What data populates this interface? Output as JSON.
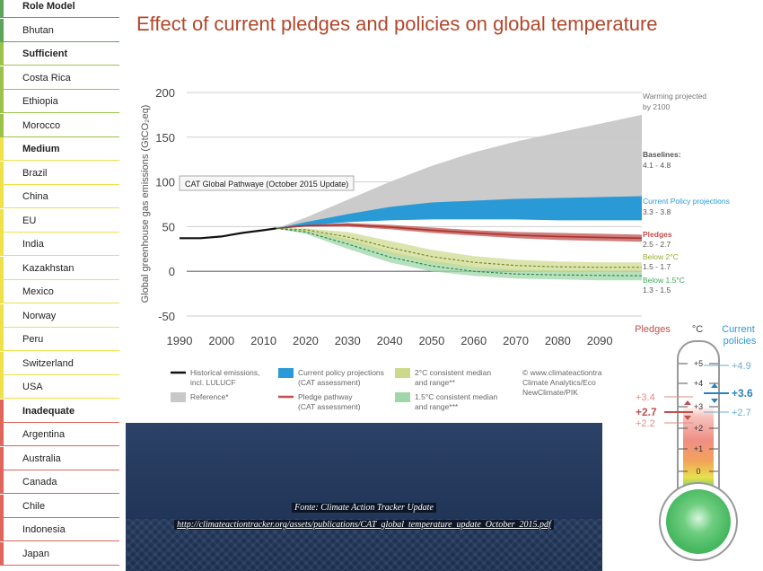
{
  "sidebar": {
    "items": [
      {
        "label": "Role Model",
        "category": true,
        "color": "#5aa55a"
      },
      {
        "label": "Bhutan",
        "category": false,
        "color": "#5aa55a"
      },
      {
        "label": "Sufficient",
        "category": true,
        "color": "#9bc34a"
      },
      {
        "label": "Costa Rica",
        "category": false,
        "color": "#9bc34a"
      },
      {
        "label": "Ethiopia",
        "category": false,
        "color": "#9bc34a"
      },
      {
        "label": "Morocco",
        "category": false,
        "color": "#9bc34a"
      },
      {
        "label": "Medium",
        "category": true,
        "color": "#f0e04a"
      },
      {
        "label": "Brazil",
        "category": false,
        "color": "#f0e04a"
      },
      {
        "label": "China",
        "category": false,
        "color": "#f0e04a"
      },
      {
        "label": "EU",
        "category": false,
        "color": "#f0e04a"
      },
      {
        "label": "India",
        "category": false,
        "color": "#f0e04a"
      },
      {
        "label": "Kazakhstan",
        "category": false,
        "color": "#f0e04a"
      },
      {
        "label": "Mexico",
        "category": false,
        "color": "#f0e04a"
      },
      {
        "label": "Norway",
        "category": false,
        "color": "#f0e04a"
      },
      {
        "label": "Peru",
        "category": false,
        "color": "#f0e04a"
      },
      {
        "label": "Switzerland",
        "category": false,
        "color": "#f0e04a"
      },
      {
        "label": "USA",
        "category": false,
        "color": "#f0e04a"
      },
      {
        "label": "Inadequate",
        "category": true,
        "color": "#e0655a"
      },
      {
        "label": "Argentina",
        "category": false,
        "color": "#e0655a"
      },
      {
        "label": "Australia",
        "category": false,
        "color": "#e0655a"
      },
      {
        "label": "Canada",
        "category": false,
        "color": "#e0655a"
      },
      {
        "label": "Chile",
        "category": false,
        "color": "#e0655a"
      },
      {
        "label": "Indonesia",
        "category": false,
        "color": "#e0655a"
      },
      {
        "label": "Japan",
        "category": false,
        "color": "#e0655a"
      }
    ]
  },
  "title": "Effect of current pledges and policies on global temperature",
  "chart_data": {
    "type": "area",
    "ylabel": "Global greenhouse gas emissions (GtCO₂eq)",
    "xlabel": "",
    "xlim": [
      1990,
      2100
    ],
    "ylim": [
      -50,
      200
    ],
    "x_ticks": [
      1990,
      2000,
      2010,
      2020,
      2030,
      2040,
      2050,
      2060,
      2070,
      2080,
      2090
    ],
    "y_ticks": [
      -50,
      0,
      50,
      100,
      150,
      200
    ],
    "grid": "horizontal",
    "annotation": "CAT Global Pathwaye (October 2015 Update)",
    "colors": {
      "historical": "#111111",
      "reference": "#c8c8c8",
      "current_policy": "#2a9ad6",
      "pledge": "#c0504d",
      "two_degree": "#cdd98a",
      "one_five_degree": "#9fd7a8"
    },
    "series": {
      "historical": {
        "x": [
          1990,
          1995,
          2000,
          2005,
          2010,
          2013
        ],
        "y": [
          37,
          37,
          39,
          43,
          46,
          48
        ]
      },
      "reference": {
        "x": [
          2013,
          2020,
          2030,
          2040,
          2050,
          2060,
          2070,
          2080,
          2090,
          2100
        ],
        "upper": [
          48,
          60,
          80,
          100,
          118,
          133,
          145,
          155,
          165,
          175
        ],
        "lower": [
          48,
          53,
          59,
          64,
          68,
          71,
          72,
          73,
          74,
          75
        ]
      },
      "current_policy": {
        "x": [
          2013,
          2020,
          2030,
          2040,
          2050,
          2060,
          2070,
          2080,
          2090,
          2100
        ],
        "upper": [
          48,
          55,
          64,
          72,
          77,
          79,
          81,
          82,
          83,
          84
        ],
        "lower": [
          48,
          51,
          55,
          57,
          58,
          58,
          58,
          57,
          57,
          57
        ]
      },
      "pledge": {
        "x": [
          2013,
          2020,
          2030,
          2040,
          2050,
          2060,
          2070,
          2080,
          2090,
          2100
        ],
        "upper": [
          48,
          52,
          54,
          52,
          49,
          46,
          44,
          43,
          42,
          41
        ],
        "lower": [
          48,
          50,
          50,
          47,
          43,
          40,
          37,
          35,
          34,
          33
        ]
      },
      "two_degree": {
        "x": [
          2013,
          2020,
          2030,
          2040,
          2050,
          2060,
          2070,
          2080,
          2090,
          2100
        ],
        "upper": [
          48,
          48,
          44,
          34,
          24,
          17,
          13,
          11,
          10,
          10
        ],
        "lower": [
          48,
          45,
          33,
          19,
          9,
          3,
          0,
          -1,
          -1,
          -1
        ]
      },
      "one_five_degree": {
        "x": [
          2013,
          2020,
          2030,
          2040,
          2050,
          2060,
          2070,
          2080,
          2090,
          2100
        ],
        "upper": [
          48,
          46,
          36,
          22,
          12,
          5,
          2,
          1,
          1,
          0
        ],
        "lower": [
          48,
          42,
          25,
          10,
          0,
          -5,
          -8,
          -9,
          -10,
          -10
        ]
      }
    },
    "right_labels": [
      {
        "text": "Warming projected",
        "color": "#777777",
        "bold": false
      },
      {
        "text": "by 2100",
        "color": "#777777",
        "bold": false
      },
      {
        "text": "Baselines:",
        "color": "#555555",
        "bold": true
      },
      {
        "text": "4.1 - 4.8",
        "color": "#555555",
        "bold": false
      },
      {
        "text": "Current Policy projections",
        "color": "#2a9ad6",
        "bold": false
      },
      {
        "text": "3.3 - 3.8",
        "color": "#555555",
        "bold": false
      },
      {
        "text": "Pledges",
        "color": "#c0504d",
        "bold": true
      },
      {
        "text": "2.5 - 2.7",
        "color": "#555555",
        "bold": false
      },
      {
        "text": "Below 2°C",
        "color": "#9aab2e",
        "bold": false
      },
      {
        "text": "1.5 - 1.7",
        "color": "#555555",
        "bold": false
      },
      {
        "text": "Below 1.5°C",
        "color": "#3fa85a",
        "bold": false
      },
      {
        "text": "1.3 - 1.5",
        "color": "#555555",
        "bold": false
      }
    ],
    "legend": [
      {
        "swatch": "line",
        "color": "#111111",
        "lines": [
          "Historical emissions,",
          "incl. LULUCF"
        ]
      },
      {
        "swatch": "box",
        "color": "#2a9ad6",
        "lines": [
          "Current policy projections",
          "(CAT assessment)"
        ]
      },
      {
        "swatch": "box",
        "color": "#cdd98a",
        "lines": [
          "2°C consistent median",
          "and range**"
        ]
      },
      {
        "swatch": "none",
        "color": "#555555",
        "lines": [
          "© www.climateactiontra",
          "Climate Analytics/Eco",
          "NewClimate/PIK"
        ]
      },
      {
        "swatch": "box",
        "color": "#c8c8c8",
        "lines": [
          "Reference*"
        ]
      },
      {
        "swatch": "line",
        "color": "#c0504d",
        "lines": [
          "Pledge pathway",
          "(CAT assessment)"
        ]
      },
      {
        "swatch": "box",
        "color": "#9fd7a8",
        "lines": [
          "1.5°C consistent median",
          "and range***"
        ]
      }
    ]
  },
  "thermometer": {
    "left_header": "Pledges",
    "unit": "°C",
    "right_header": "Current policies",
    "scale": [
      "+5",
      "+4",
      "+3",
      "+2",
      "+1",
      "0"
    ],
    "pledges": {
      "high": "+3.4",
      "mid": "+2.7",
      "low": "+2.2"
    },
    "policies": {
      "high": "+4.9",
      "mid": "+3.6",
      "low": "+2.7"
    }
  },
  "footer": {
    "source_label": "Fonte: Climate Action Tracker Update",
    "source_url": "http://climateactiontracker.org/assets/publications/CAT_global_temperature_update_October_2015.pdf"
  }
}
